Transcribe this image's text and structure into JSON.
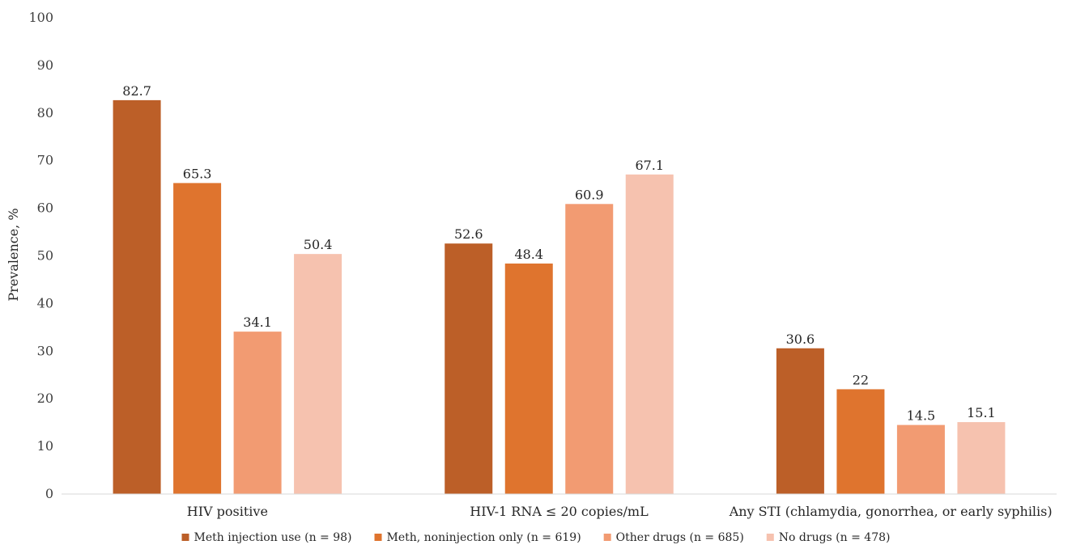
{
  "chart_data": {
    "type": "bar",
    "title": "",
    "xlabel": "",
    "ylabel": "Prevalence, %",
    "ylim": [
      0,
      100
    ],
    "yticks": [
      0,
      10,
      20,
      30,
      40,
      50,
      60,
      70,
      80,
      90,
      100
    ],
    "grid": false,
    "legend_position": "bottom",
    "categories": [
      "HIV positive",
      "HIV-1 RNA ≤ 20 copies/mL",
      "Any STI (chlamydia, gonorrhea, or early syphilis)"
    ],
    "series": [
      {
        "name": "Meth injection use (n = 98)",
        "color": "#bc5f28",
        "values": [
          82.7,
          52.6,
          30.6
        ]
      },
      {
        "name": "Meth, noninjection only (n = 619)",
        "color": "#df742e",
        "values": [
          65.3,
          48.4,
          22
        ]
      },
      {
        "name": "Other drugs (n = 685)",
        "color": "#f29b72",
        "values": [
          34.1,
          60.9,
          14.5
        ]
      },
      {
        "name": "No drugs (n = 478)",
        "color": "#f6c2af",
        "values": [
          50.4,
          67.1,
          15.1
        ]
      }
    ]
  }
}
